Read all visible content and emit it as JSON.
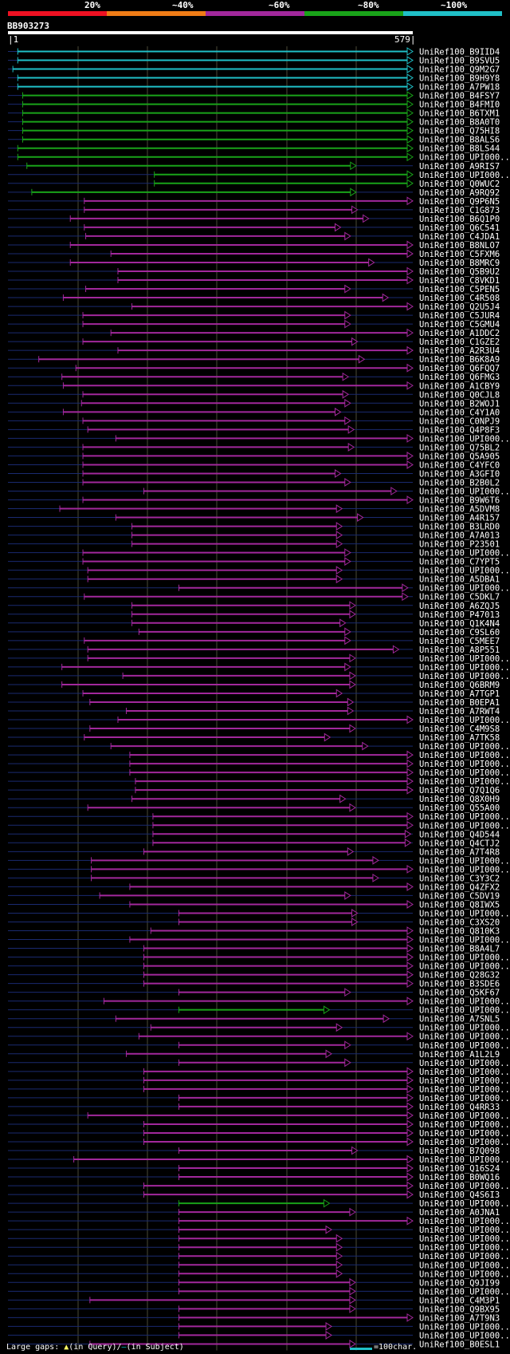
{
  "legend": {
    "labels": [
      "20%",
      "~40%",
      "~60%",
      "~80%",
      "~100%"
    ],
    "colors": [
      "#ee1122",
      "#f07c16",
      "#a2289c",
      "#19a319",
      "#20c0c8"
    ]
  },
  "query": {
    "name": "BB903273",
    "start": "|1",
    "end": "579|",
    "length": 579
  },
  "footer": {
    "prefix": "Large gaps: ",
    "query_gap": "(in Query)/",
    "subject_gap": "(in Subject)",
    "scale": "=100char."
  },
  "hits": [
    {
      "name": "UniRef100_B9IID4",
      "class": 5,
      "start": 15,
      "end": 579
    },
    {
      "name": "UniRef100_B9SVU5",
      "class": 5,
      "start": 15,
      "end": 579
    },
    {
      "name": "UniRef100_Q9M2G7",
      "class": 5,
      "start": 8,
      "end": 579
    },
    {
      "name": "UniRef100_B9H9Y8",
      "class": 5,
      "start": 15,
      "end": 579
    },
    {
      "name": "UniRef100_A7PW18",
      "class": 5,
      "start": 15,
      "end": 579
    },
    {
      "name": "UniRef100_B4FSY7",
      "class": 4,
      "start": 22,
      "end": 579
    },
    {
      "name": "UniRef100_B4FMI0",
      "class": 4,
      "start": 22,
      "end": 579
    },
    {
      "name": "UniRef100_B6TXM1",
      "class": 4,
      "start": 22,
      "end": 579
    },
    {
      "name": "UniRef100_B8A0T0",
      "class": 4,
      "start": 22,
      "end": 579
    },
    {
      "name": "UniRef100_Q75HI8",
      "class": 4,
      "start": 22,
      "end": 579
    },
    {
      "name": "UniRef100_B8ALS6",
      "class": 4,
      "start": 22,
      "end": 579
    },
    {
      "name": "UniRef100_B8LS44",
      "class": 4,
      "start": 15,
      "end": 579
    },
    {
      "name": "UniRef100_UPI000..",
      "class": 4,
      "start": 15,
      "end": 579
    },
    {
      "name": "UniRef100_A9RIS7",
      "class": 4,
      "start": 28,
      "end": 498
    },
    {
      "name": "UniRef100_UPI000..",
      "class": 4,
      "start": 210,
      "end": 579
    },
    {
      "name": "UniRef100_Q0WUC2",
      "class": 4,
      "start": 210,
      "end": 579
    },
    {
      "name": "UniRef100_A9RQ92",
      "class": 4,
      "start": 35,
      "end": 498
    },
    {
      "name": "UniRef100_Q9P6N5",
      "class": 3,
      "start": 110,
      "end": 579
    },
    {
      "name": "UniRef100_C1G873",
      "class": 3,
      "start": 110,
      "end": 500
    },
    {
      "name": "UniRef100_B6Q1P0",
      "class": 3,
      "start": 90,
      "end": 516
    },
    {
      "name": "UniRef100_Q6C541",
      "class": 3,
      "start": 110,
      "end": 476
    },
    {
      "name": "UniRef100_C4JDA1",
      "class": 3,
      "start": 112,
      "end": 490
    },
    {
      "name": "UniRef100_B8NLO7",
      "class": 3,
      "start": 90,
      "end": 579
    },
    {
      "name": "UniRef100_C5FXM6",
      "class": 3,
      "start": 148,
      "end": 579
    },
    {
      "name": "UniRef100_B8MRC9",
      "class": 3,
      "start": 90,
      "end": 524
    },
    {
      "name": "UniRef100_Q5B9U2",
      "class": 3,
      "start": 158,
      "end": 579
    },
    {
      "name": "UniRef100_C8VKD1",
      "class": 3,
      "start": 158,
      "end": 579
    },
    {
      "name": "UniRef100_C5PEN5",
      "class": 3,
      "start": 112,
      "end": 490
    },
    {
      "name": "UniRef100_C4R508",
      "class": 3,
      "start": 80,
      "end": 544
    },
    {
      "name": "UniRef100_Q2U5J4",
      "class": 3,
      "start": 178,
      "end": 579
    },
    {
      "name": "UniRef100_C5JUR4",
      "class": 3,
      "start": 108,
      "end": 490
    },
    {
      "name": "UniRef100_C5GMU4",
      "class": 3,
      "start": 108,
      "end": 490
    },
    {
      "name": "UniRef100_A1DDC2",
      "class": 3,
      "start": 148,
      "end": 579
    },
    {
      "name": "UniRef100_C1GZE2",
      "class": 3,
      "start": 108,
      "end": 500
    },
    {
      "name": "UniRef100_A2R3U4",
      "class": 3,
      "start": 158,
      "end": 579
    },
    {
      "name": "UniRef100_B6K8A9",
      "class": 3,
      "start": 45,
      "end": 510
    },
    {
      "name": "UniRef100_Q6FQQ7",
      "class": 3,
      "start": 98,
      "end": 579
    },
    {
      "name": "UniRef100_Q6FMG3",
      "class": 3,
      "start": 78,
      "end": 487
    },
    {
      "name": "UniRef100_A1CBY9",
      "class": 3,
      "start": 80,
      "end": 579
    },
    {
      "name": "UniRef100_Q0CJL8",
      "class": 3,
      "start": 108,
      "end": 487
    },
    {
      "name": "UniRef100_B2WOJ1",
      "class": 3,
      "start": 106,
      "end": 490
    },
    {
      "name": "UniRef100_C4Y1A0",
      "class": 3,
      "start": 80,
      "end": 476
    },
    {
      "name": "UniRef100_C0NPJ9",
      "class": 3,
      "start": 108,
      "end": 490
    },
    {
      "name": "UniRef100_Q4P8F3",
      "class": 3,
      "start": 115,
      "end": 495
    },
    {
      "name": "UniRef100_UPI000..",
      "class": 3,
      "start": 155,
      "end": 579
    },
    {
      "name": "UniRef100_Q75BL2",
      "class": 3,
      "start": 108,
      "end": 495
    },
    {
      "name": "UniRef100_Q5A905",
      "class": 3,
      "start": 108,
      "end": 579
    },
    {
      "name": "UniRef100_C4YFC0",
      "class": 3,
      "start": 108,
      "end": 579
    },
    {
      "name": "UniRef100_A3GFI0",
      "class": 3,
      "start": 108,
      "end": 476
    },
    {
      "name": "UniRef100_B2B0L2",
      "class": 3,
      "start": 108,
      "end": 490
    },
    {
      "name": "UniRef100_UPI000..",
      "class": 3,
      "start": 195,
      "end": 556
    },
    {
      "name": "UniRef100_B9W6T6",
      "class": 3,
      "start": 108,
      "end": 579
    },
    {
      "name": "UniRef100_A5DVM8",
      "class": 3,
      "start": 75,
      "end": 478
    },
    {
      "name": "UniRef100_A4R157",
      "class": 3,
      "start": 155,
      "end": 508
    },
    {
      "name": "UniRef100_B3LRD0",
      "class": 3,
      "start": 178,
      "end": 478
    },
    {
      "name": "UniRef100_A7A013",
      "class": 3,
      "start": 178,
      "end": 478
    },
    {
      "name": "UniRef100_P23501",
      "class": 3,
      "start": 178,
      "end": 478
    },
    {
      "name": "UniRef100_UPI000..",
      "class": 3,
      "start": 108,
      "end": 490
    },
    {
      "name": "UniRef100_C7YPT5",
      "class": 3,
      "start": 108,
      "end": 490
    },
    {
      "name": "UniRef100_UPI000..",
      "class": 3,
      "start": 115,
      "end": 478
    },
    {
      "name": "UniRef100_A5DBA1",
      "class": 3,
      "start": 115,
      "end": 478
    },
    {
      "name": "UniRef100_UPI000..",
      "class": 3,
      "start": 245,
      "end": 572
    },
    {
      "name": "UniRef100_C5DKL7",
      "class": 3,
      "start": 110,
      "end": 572
    },
    {
      "name": "UniRef100_A6ZQJ5",
      "class": 3,
      "start": 178,
      "end": 497
    },
    {
      "name": "UniRef100_P47013",
      "class": 3,
      "start": 178,
      "end": 497
    },
    {
      "name": "UniRef100_Q1K4N4",
      "class": 3,
      "start": 178,
      "end": 483
    },
    {
      "name": "UniRef100_C9SL60",
      "class": 3,
      "start": 188,
      "end": 490
    },
    {
      "name": "UniRef100_C5MEE7",
      "class": 3,
      "start": 110,
      "end": 490
    },
    {
      "name": "UniRef100_A8P551",
      "class": 3,
      "start": 115,
      "end": 559
    },
    {
      "name": "UniRef100_UPI000..",
      "class": 3,
      "start": 115,
      "end": 497
    },
    {
      "name": "UniRef100_UPI000..",
      "class": 3,
      "start": 78,
      "end": 490
    },
    {
      "name": "UniRef100_UPI000..",
      "class": 3,
      "start": 165,
      "end": 497
    },
    {
      "name": "UniRef100_Q6BRM9",
      "class": 3,
      "start": 78,
      "end": 497
    },
    {
      "name": "UniRef100_A7TGP1",
      "class": 3,
      "start": 108,
      "end": 478
    },
    {
      "name": "UniRef100_B0EPA1",
      "class": 3,
      "start": 118,
      "end": 494
    },
    {
      "name": "UniRef100_A7RWT4",
      "class": 3,
      "start": 170,
      "end": 494
    },
    {
      "name": "UniRef100_UPI000..",
      "class": 3,
      "start": 158,
      "end": 579
    },
    {
      "name": "UniRef100_C4M9S8",
      "class": 3,
      "start": 118,
      "end": 497
    },
    {
      "name": "UniRef100_A7TK58",
      "class": 3,
      "start": 110,
      "end": 461
    },
    {
      "name": "UniRef100_UPI000..",
      "class": 3,
      "start": 148,
      "end": 515
    },
    {
      "name": "UniRef100_UPI000..",
      "class": 3,
      "start": 175,
      "end": 579
    },
    {
      "name": "UniRef100_UPI000..",
      "class": 3,
      "start": 175,
      "end": 579
    },
    {
      "name": "UniRef100_UPI000..",
      "class": 3,
      "start": 175,
      "end": 579
    },
    {
      "name": "UniRef100_UPI000..",
      "class": 3,
      "start": 183,
      "end": 579
    },
    {
      "name": "UniRef100_Q7Q1Q6",
      "class": 3,
      "start": 183,
      "end": 579
    },
    {
      "name": "UniRef100_Q8X0H9",
      "class": 3,
      "start": 178,
      "end": 483
    },
    {
      "name": "UniRef100_Q55A00",
      "class": 3,
      "start": 115,
      "end": 497
    },
    {
      "name": "UniRef100_UPI000..",
      "class": 3,
      "start": 208,
      "end": 579
    },
    {
      "name": "UniRef100_UPI000..",
      "class": 3,
      "start": 208,
      "end": 579
    },
    {
      "name": "UniRef100_Q4D544",
      "class": 3,
      "start": 208,
      "end": 576
    },
    {
      "name": "UniRef100_Q4CTJ2",
      "class": 3,
      "start": 208,
      "end": 576
    },
    {
      "name": "UniRef100_A7T4R8",
      "class": 3,
      "start": 195,
      "end": 494
    },
    {
      "name": "UniRef100_UPI000..",
      "class": 3,
      "start": 120,
      "end": 530
    },
    {
      "name": "UniRef100_UPI000..",
      "class": 3,
      "start": 120,
      "end": 579
    },
    {
      "name": "UniRef100_C3Y3C2",
      "class": 3,
      "start": 120,
      "end": 530
    },
    {
      "name": "UniRef100_Q4ZFX2",
      "class": 3,
      "start": 175,
      "end": 579
    },
    {
      "name": "UniRef100_C5DV19",
      "class": 3,
      "start": 132,
      "end": 490
    },
    {
      "name": "UniRef100_Q8IWX5",
      "class": 3,
      "start": 175,
      "end": 579
    },
    {
      "name": "UniRef100_UPI000..",
      "class": 3,
      "start": 245,
      "end": 500
    },
    {
      "name": "UniRef100_C3XS20",
      "class": 3,
      "start": 245,
      "end": 500
    },
    {
      "name": "UniRef100_Q810K3",
      "class": 3,
      "start": 205,
      "end": 579
    },
    {
      "name": "UniRef100_UPI000..",
      "class": 3,
      "start": 175,
      "end": 579
    },
    {
      "name": "UniRef100_B8A4L7",
      "class": 3,
      "start": 195,
      "end": 579
    },
    {
      "name": "UniRef100_UPI000..",
      "class": 3,
      "start": 195,
      "end": 579
    },
    {
      "name": "UniRef100_UPI000..",
      "class": 3,
      "start": 195,
      "end": 579
    },
    {
      "name": "UniRef100_Q28G32",
      "class": 3,
      "start": 195,
      "end": 579
    },
    {
      "name": "UniRef100_B3SDE6",
      "class": 3,
      "start": 195,
      "end": 579
    },
    {
      "name": "UniRef100_Q5KF67",
      "class": 3,
      "start": 245,
      "end": 490
    },
    {
      "name": "UniRef100_UPI000..",
      "class": 3,
      "start": 138,
      "end": 579
    },
    {
      "name": "UniRef100_UPI000..",
      "class": 4,
      "start": 245,
      "end": 460
    },
    {
      "name": "UniRef100_A7SNL5",
      "class": 3,
      "start": 155,
      "end": 545
    },
    {
      "name": "UniRef100_UPI000..",
      "class": 3,
      "start": 205,
      "end": 478
    },
    {
      "name": "UniRef100_UPI000..",
      "class": 3,
      "start": 188,
      "end": 579
    },
    {
      "name": "UniRef100_UPI000..",
      "class": 3,
      "start": 245,
      "end": 490
    },
    {
      "name": "UniRef100_A1L2L9",
      "class": 3,
      "start": 170,
      "end": 463
    },
    {
      "name": "UniRef100_UPI000..",
      "class": 3,
      "start": 245,
      "end": 490
    },
    {
      "name": "UniRef100_UPI000..",
      "class": 3,
      "start": 195,
      "end": 579
    },
    {
      "name": "UniRef100_UPI000..",
      "class": 3,
      "start": 195,
      "end": 579
    },
    {
      "name": "UniRef100_UPI000..",
      "class": 3,
      "start": 195,
      "end": 579
    },
    {
      "name": "UniRef100_UPI000..",
      "class": 3,
      "start": 245,
      "end": 579
    },
    {
      "name": "UniRef100_Q4RR33",
      "class": 3,
      "start": 245,
      "end": 579
    },
    {
      "name": "UniRef100_UPI000..",
      "class": 3,
      "start": 115,
      "end": 579
    },
    {
      "name": "UniRef100_UPI000..",
      "class": 3,
      "start": 195,
      "end": 579
    },
    {
      "name": "UniRef100_UPI000..",
      "class": 3,
      "start": 195,
      "end": 579
    },
    {
      "name": "UniRef100_UPI000..",
      "class": 3,
      "start": 195,
      "end": 579
    },
    {
      "name": "UniRef100_B7Q098",
      "class": 3,
      "start": 245,
      "end": 500
    },
    {
      "name": "UniRef100_UPI000..",
      "class": 3,
      "start": 95,
      "end": 579
    },
    {
      "name": "UniRef100_Q16S24",
      "class": 3,
      "start": 245,
      "end": 579
    },
    {
      "name": "UniRef100_B0WQ16",
      "class": 3,
      "start": 245,
      "end": 579
    },
    {
      "name": "UniRef100_UPI000..",
      "class": 3,
      "start": 195,
      "end": 579
    },
    {
      "name": "UniRef100_Q4S6I3",
      "class": 3,
      "start": 195,
      "end": 579
    },
    {
      "name": "UniRef100_UPI000..",
      "class": 4,
      "start": 245,
      "end": 460
    },
    {
      "name": "UniRef100_A0JNA1",
      "class": 3,
      "start": 245,
      "end": 497
    },
    {
      "name": "UniRef100_UPI000..",
      "class": 3,
      "start": 245,
      "end": 579
    },
    {
      "name": "UniRef100_UPI000..",
      "class": 3,
      "start": 245,
      "end": 463
    },
    {
      "name": "UniRef100_UPI000..",
      "class": 3,
      "start": 245,
      "end": 478
    },
    {
      "name": "UniRef100_UPI000..",
      "class": 3,
      "start": 245,
      "end": 478
    },
    {
      "name": "UniRef100_UPI000..",
      "class": 3,
      "start": 245,
      "end": 478
    },
    {
      "name": "UniRef100_UPI000..",
      "class": 3,
      "start": 245,
      "end": 478
    },
    {
      "name": "UniRef100_UPI000..",
      "class": 3,
      "start": 245,
      "end": 478
    },
    {
      "name": "UniRef100_Q9JI99",
      "class": 3,
      "start": 245,
      "end": 497
    },
    {
      "name": "UniRef100_UPI000..",
      "class": 3,
      "start": 245,
      "end": 497
    },
    {
      "name": "UniRef100_C4M3P1",
      "class": 3,
      "start": 118,
      "end": 497
    },
    {
      "name": "UniRef100_Q9BX95",
      "class": 3,
      "start": 245,
      "end": 497
    },
    {
      "name": "UniRef100_A7T9N3",
      "class": 3,
      "start": 245,
      "end": 579
    },
    {
      "name": "UniRef100_UPI000..",
      "class": 3,
      "start": 245,
      "end": 463
    },
    {
      "name": "UniRef100_UPI000..",
      "class": 3,
      "start": 245,
      "end": 463
    },
    {
      "name": "UniRef100_B0ESL1",
      "class": 3,
      "start": 118,
      "end": 497
    }
  ]
}
